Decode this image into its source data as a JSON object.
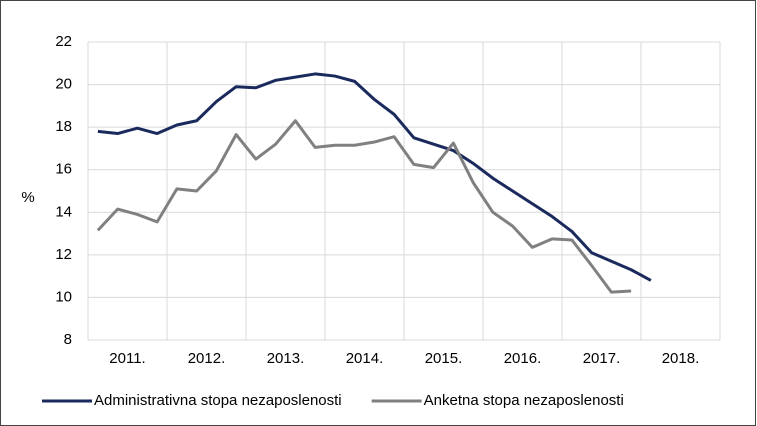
{
  "chart_data": {
    "type": "line",
    "y_label": "%",
    "x": [
      2011.125,
      2011.375,
      2011.625,
      2011.875,
      2012.125,
      2012.375,
      2012.625,
      2012.875,
      2013.125,
      2013.375,
      2013.625,
      2013.875,
      2014.125,
      2014.375,
      2014.625,
      2014.875,
      2015.125,
      2015.375,
      2015.625,
      2015.875,
      2016.125,
      2016.375,
      2016.625,
      2016.875,
      2017.125,
      2017.375,
      2017.625,
      2017.875,
      2018.125
    ],
    "series": [
      {
        "name": "Administrativna stopa nezaposlenosti",
        "color": "#1b2a5c",
        "values": [
          17.8,
          17.7,
          17.95,
          17.7,
          18.1,
          18.3,
          19.2,
          19.9,
          19.85,
          20.2,
          20.35,
          20.5,
          20.4,
          20.15,
          19.3,
          18.6,
          17.5,
          17.2,
          16.9,
          16.3,
          15.6,
          15.0,
          14.4,
          13.8,
          13.1,
          12.1,
          11.7,
          11.3,
          10.8
        ]
      },
      {
        "name": "Anketna stopa nezaposlenosti",
        "color": "#808080",
        "values": [
          13.15,
          14.15,
          13.9,
          13.55,
          15.1,
          15.0,
          15.95,
          17.65,
          16.5,
          17.2,
          18.3,
          17.05,
          17.15,
          17.15,
          17.3,
          17.55,
          16.25,
          16.1,
          17.25,
          15.4,
          14.0,
          13.35,
          12.35,
          12.75,
          12.7,
          11.5,
          10.25,
          10.3,
          null
        ]
      }
    ],
    "xlim": [
      2011,
      2019
    ],
    "xticks": [
      {
        "value": 2011.5,
        "label": "2011."
      },
      {
        "value": 2012.5,
        "label": "2012."
      },
      {
        "value": 2013.5,
        "label": "2013."
      },
      {
        "value": 2014.5,
        "label": "2014."
      },
      {
        "value": 2015.5,
        "label": "2015."
      },
      {
        "value": 2016.5,
        "label": "2016."
      },
      {
        "value": 2017.5,
        "label": "2017."
      },
      {
        "value": 2018.5,
        "label": "2018."
      }
    ],
    "ylim": [
      8,
      22
    ],
    "yticks": [
      8,
      10,
      12,
      14,
      16,
      18,
      20,
      22
    ],
    "grid": true,
    "legend": "bottom"
  }
}
